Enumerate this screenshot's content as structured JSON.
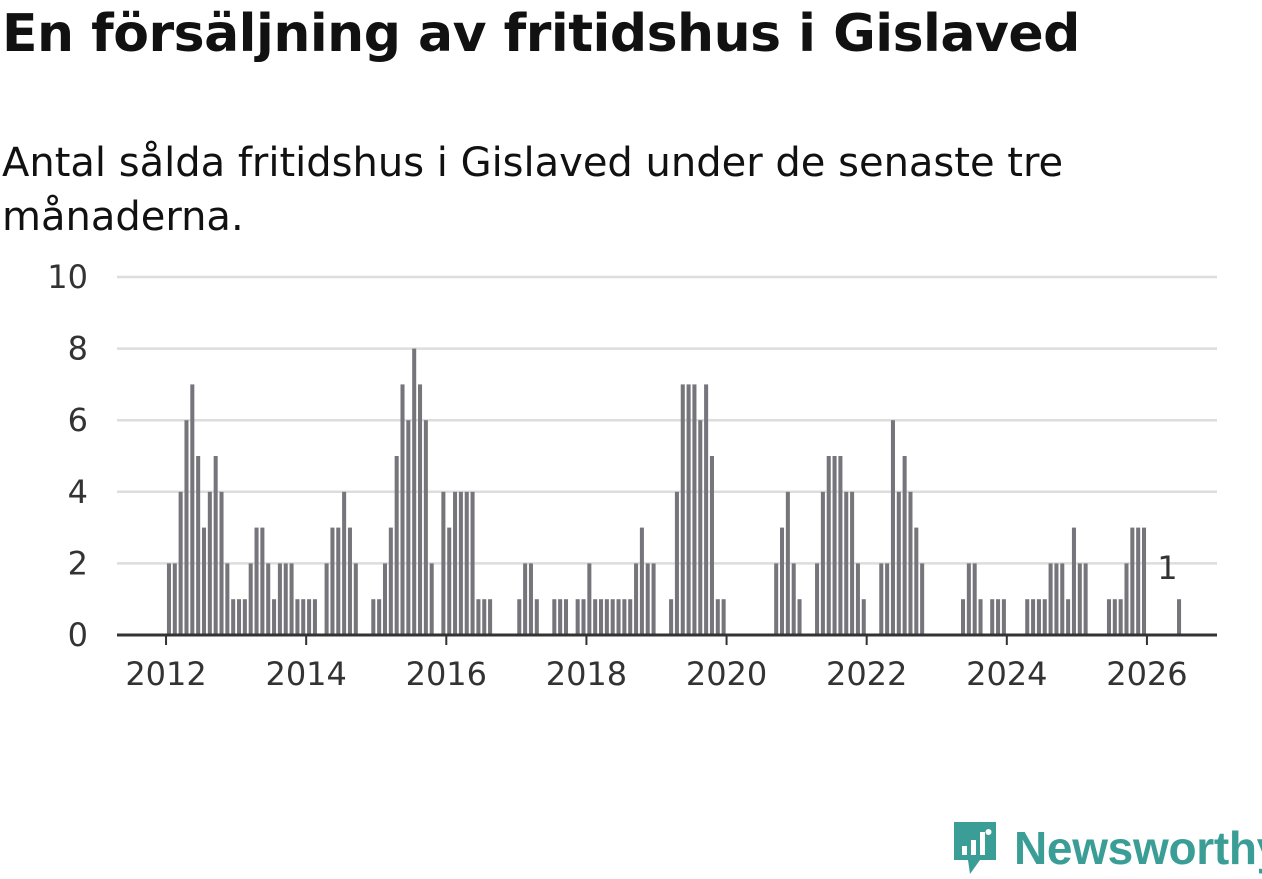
{
  "title": "En försäljning av fritidshus i Gislaved",
  "subtitle": "Antal sålda fritidshus i Gislaved under de senaste tre månaderna.",
  "brand": {
    "name": "Newsworthy",
    "icon": "newsworthy-logo-icon",
    "color": "#3a9e97"
  },
  "colors": {
    "bar": "#76757b",
    "highlight": "#14a19a",
    "grid": "#dddddd",
    "axis": "#333333"
  },
  "chart_data": {
    "type": "bar",
    "title": "En försäljning av fritidshus i Gislaved",
    "xlabel": "",
    "ylabel": "",
    "ylim": [
      0,
      10
    ],
    "yticks": [
      0,
      2,
      4,
      6,
      8,
      10
    ],
    "xlim": [
      2011.3,
      2027.0
    ],
    "xticks": [
      {
        "value": 2012,
        "label": "2012"
      },
      {
        "value": 2014,
        "label": "2014"
      },
      {
        "value": 2016,
        "label": "2016"
      },
      {
        "value": 2018,
        "label": "2018"
      },
      {
        "value": 2020,
        "label": "2020"
      },
      {
        "value": 2022,
        "label": "2022"
      },
      {
        "value": 2024,
        "label": "2024"
      },
      {
        "value": 2026,
        "label": "2026"
      }
    ],
    "start_year": 2012,
    "start_month": 1,
    "series": [
      {
        "name": "Antal sålda fritidshus",
        "values": [
          2,
          2,
          4,
          6,
          7,
          5,
          3,
          4,
          5,
          4,
          2,
          1,
          1,
          1,
          2,
          3,
          3,
          2,
          1,
          2,
          2,
          2,
          1,
          1,
          1,
          1,
          0,
          2,
          3,
          3,
          4,
          3,
          2,
          0,
          0,
          1,
          1,
          2,
          3,
          5,
          7,
          6,
          8,
          7,
          6,
          2,
          0,
          4,
          3,
          4,
          4,
          4,
          4,
          1,
          1,
          1,
          0,
          0,
          0,
          0,
          1,
          2,
          2,
          1,
          0,
          0,
          1,
          1,
          1,
          0,
          1,
          1,
          2,
          1,
          1,
          1,
          1,
          1,
          1,
          1,
          2,
          3,
          2,
          2,
          0,
          0,
          1,
          4,
          7,
          7,
          7,
          6,
          7,
          5,
          1,
          1,
          0,
          0,
          0,
          0,
          0,
          0,
          0,
          0,
          2,
          3,
          4,
          2,
          1,
          0,
          0,
          2,
          4,
          5,
          5,
          5,
          4,
          4,
          2,
          1,
          0,
          0,
          2,
          2,
          6,
          4,
          5,
          4,
          3,
          2,
          0,
          0,
          0,
          0,
          0,
          0,
          1,
          2,
          2,
          1,
          0,
          1,
          1,
          1,
          0,
          0,
          0,
          1,
          1,
          1,
          1,
          2,
          2,
          2,
          1,
          3,
          2,
          2,
          0,
          0,
          0,
          1,
          1,
          1,
          2,
          3,
          3,
          3,
          0,
          0,
          0,
          0,
          0,
          1
        ]
      }
    ],
    "highlight": {
      "index": 171,
      "value": 1,
      "label": "1"
    }
  }
}
